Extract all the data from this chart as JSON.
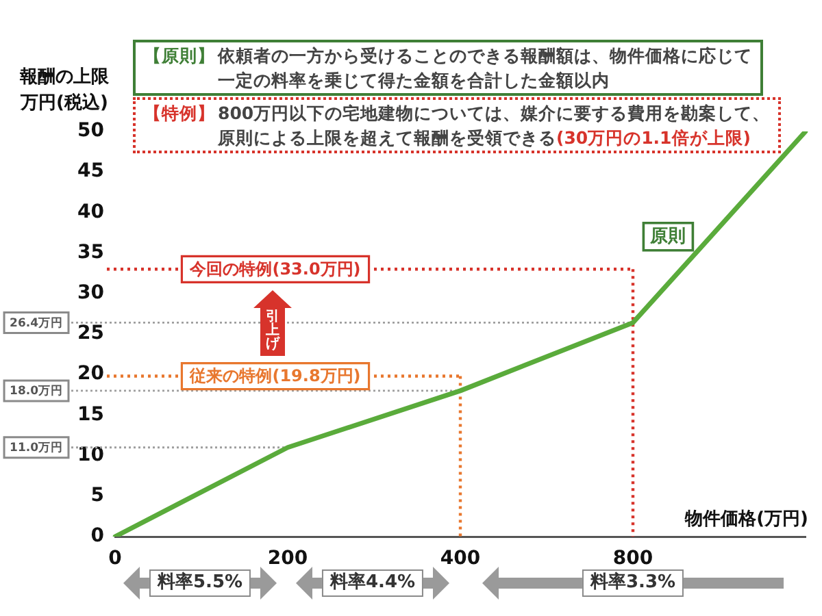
{
  "chart_data": {
    "type": "line",
    "xlabel": "物件価格(万円)",
    "ylabel": "報酬の上限万円(税込)",
    "categories": [
      "0",
      "200",
      "400",
      "800",
      null
    ],
    "series": [
      {
        "name": "原則",
        "color": "#5aab3b",
        "values": [
          0,
          11,
          18,
          26.4,
          50
        ]
      }
    ],
    "ylim": [
      0,
      50
    ],
    "yticks": [
      0,
      5,
      10,
      15,
      20,
      25,
      30,
      35,
      40,
      45,
      50
    ],
    "ref_lines": [
      {
        "axis": "y",
        "value": 11,
        "label": "11.0万円",
        "color": "#9e9e9e",
        "line_style": "dotted"
      },
      {
        "axis": "y",
        "value": 18,
        "label": "18.0万円",
        "color": "#9e9e9e",
        "line_style": "dotted"
      },
      {
        "axis": "y",
        "value": 26.4,
        "label": "26.4万円",
        "color": "#9e9e9e",
        "line_style": "dotted"
      },
      {
        "axis": "y",
        "value": 19.8,
        "label": "従来の特例(19.8万円)",
        "color": "#e8772e",
        "line_style": "dotted"
      },
      {
        "axis": "x",
        "value": "400",
        "color": "#e8772e",
        "line_style": "dotted"
      },
      {
        "axis": "y",
        "value": 33,
        "label": "今回の特例(33.0万円)",
        "color": "#d7332b",
        "line_style": "dotted"
      },
      {
        "axis": "x",
        "value": "800",
        "color": "#d7332b",
        "line_style": "dotted"
      }
    ],
    "annotations": [
      "【原則】",
      "依頼者の一方から受けることのできる報酬額は、物件価格に応じて",
      "一定の料率を乗じて得た金額を合計した金額以内",
      "【特例】",
      "800万円以下の宅地建物については、媒介に要する費用を勘案して、",
      "原則による上限を超えて報酬を受領できる",
      "(30万円の1.1倍が上限)",
      "引上げ",
      "料率5.5%",
      "料率4.4%",
      "料率3.3%"
    ]
  }
}
